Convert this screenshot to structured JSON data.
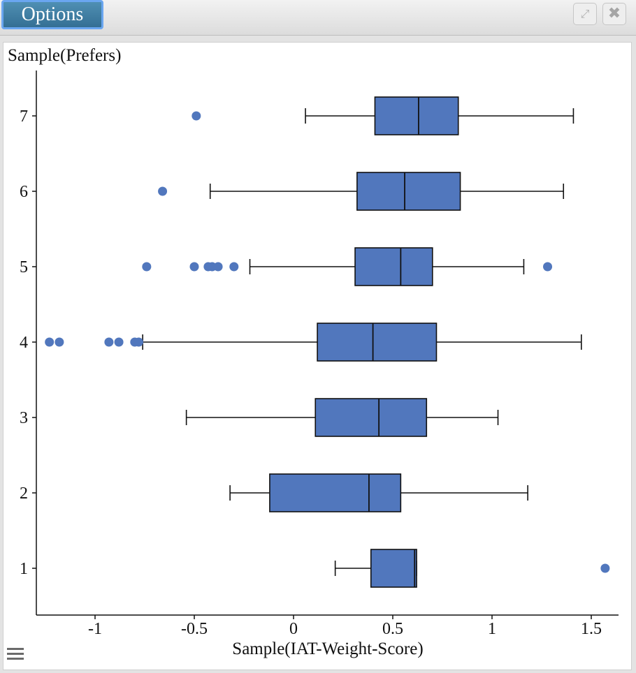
{
  "window": {
    "options_label": "Options",
    "expand_icon": "expand-icon",
    "close_icon": "close-icon",
    "menu_icon": "hamburger-menu-icon"
  },
  "colors": {
    "box_fill": "#5177bd",
    "outlier": "#5177bd",
    "line": "#111111"
  },
  "chart_data": {
    "type": "boxplot",
    "orientation": "horizontal",
    "xlabel": "Sample(IAT-Weight-Score)",
    "ylabel": "Sample(Prefers)",
    "xlim": [
      -1.3,
      1.63
    ],
    "x_ticks": [
      "-1",
      "-0.5",
      "0",
      "0.5",
      "1",
      "1.5"
    ],
    "categories": [
      "1",
      "2",
      "3",
      "4",
      "5",
      "6",
      "7"
    ],
    "boxes": [
      {
        "category": "1",
        "min": 0.21,
        "q1": 0.39,
        "median": 0.61,
        "q3": 0.62,
        "max": 0.62,
        "outliers": [
          1.57
        ]
      },
      {
        "category": "2",
        "min": -0.32,
        "q1": -0.12,
        "median": 0.38,
        "q3": 0.54,
        "max": 1.18,
        "outliers": []
      },
      {
        "category": "3",
        "min": -0.54,
        "q1": 0.11,
        "median": 0.43,
        "q3": 0.67,
        "max": 1.03,
        "outliers": []
      },
      {
        "category": "4",
        "min": -0.76,
        "q1": 0.12,
        "median": 0.4,
        "q3": 0.72,
        "max": 1.45,
        "outliers": [
          -1.23,
          -1.18,
          -0.93,
          -0.88,
          -0.8,
          -0.78
        ]
      },
      {
        "category": "5",
        "min": -0.22,
        "q1": 0.31,
        "median": 0.54,
        "q3": 0.7,
        "max": 1.16,
        "outliers": [
          -0.74,
          -0.5,
          -0.43,
          -0.41,
          -0.38,
          -0.3,
          1.28
        ]
      },
      {
        "category": "6",
        "min": -0.42,
        "q1": 0.32,
        "median": 0.56,
        "q3": 0.84,
        "max": 1.36,
        "outliers": [
          -0.66
        ]
      },
      {
        "category": "7",
        "min": 0.06,
        "q1": 0.41,
        "median": 0.63,
        "q3": 0.83,
        "max": 1.41,
        "outliers": [
          -0.49
        ]
      }
    ]
  }
}
